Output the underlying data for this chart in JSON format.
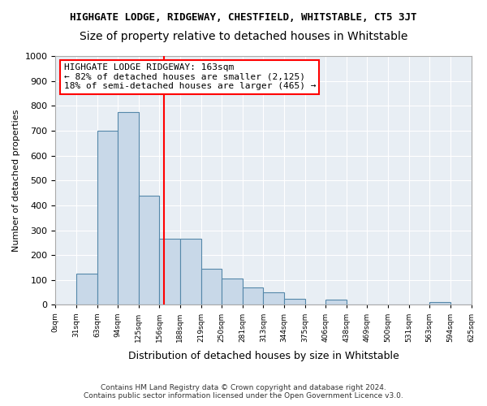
{
  "title": "HIGHGATE LODGE, RIDGEWAY, CHESTFIELD, WHITSTABLE, CT5 3JT",
  "subtitle": "Size of property relative to detached houses in Whitstable",
  "xlabel": "Distribution of detached houses by size in Whitstable",
  "ylabel": "Number of detached properties",
  "bar_values": [
    0,
    125,
    700,
    775,
    440,
    265,
    265,
    145,
    105,
    70,
    50,
    25,
    0,
    20,
    0,
    0,
    0,
    0,
    10,
    0
  ],
  "bin_labels": [
    "0sqm",
    "31sqm",
    "63sqm",
    "94sqm",
    "125sqm",
    "156sqm",
    "188sqm",
    "219sqm",
    "250sqm",
    "281sqm",
    "313sqm",
    "344sqm",
    "375sqm",
    "406sqm",
    "438sqm",
    "469sqm",
    "500sqm",
    "531sqm",
    "563sqm",
    "594sqm",
    "625sqm"
  ],
  "ylim": [
    0,
    1000
  ],
  "yticks": [
    0,
    100,
    200,
    300,
    400,
    500,
    600,
    700,
    800,
    900,
    1000
  ],
  "bar_color": "#c8d8e8",
  "bar_edge_color": "#5588aa",
  "vline_color": "red",
  "annotation_text": "HIGHGATE LODGE RIDGEWAY: 163sqm\n← 82% of detached houses are smaller (2,125)\n18% of semi-detached houses are larger (465) →",
  "annotation_fontsize": 8,
  "footer_line1": "Contains HM Land Registry data © Crown copyright and database right 2024.",
  "footer_line2": "Contains public sector information licensed under the Open Government Licence v3.0.",
  "background_color": "#e8eef4",
  "title_fontsize": 9,
  "subtitle_fontsize": 10
}
